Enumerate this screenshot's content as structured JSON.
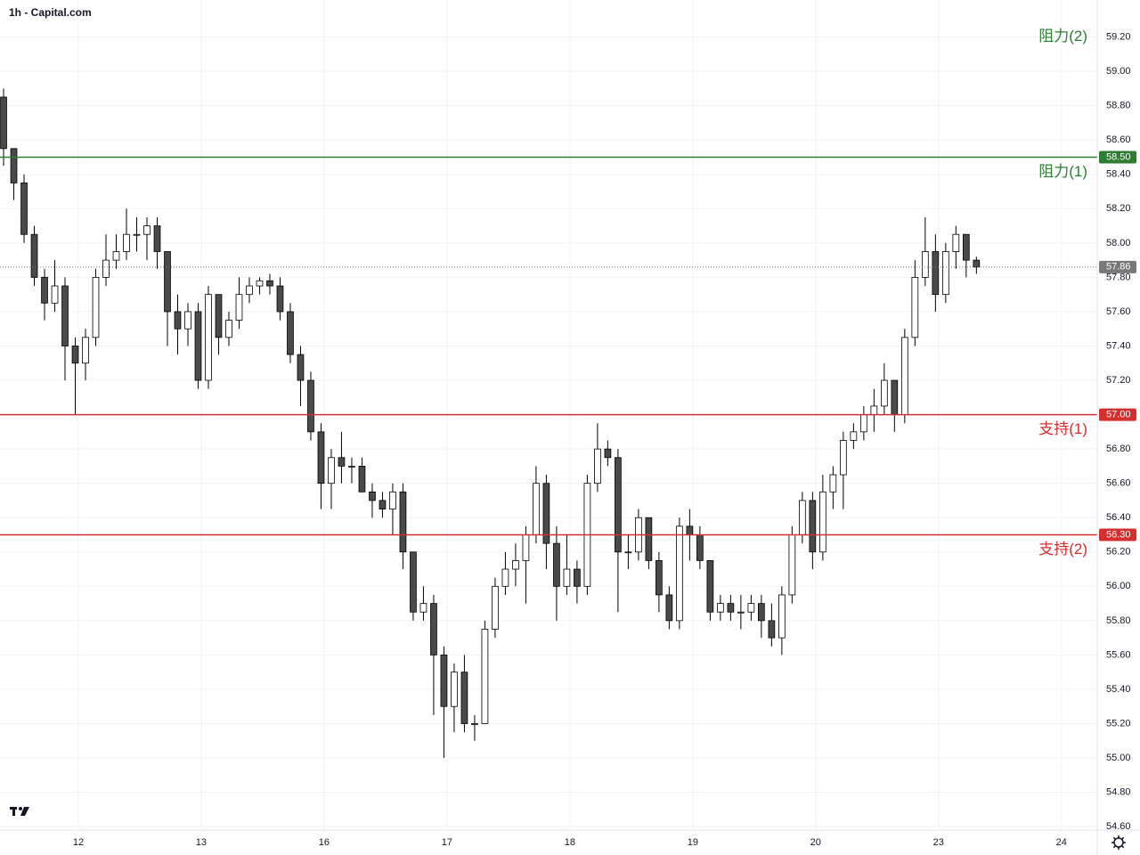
{
  "chart_data": {
    "type": "candlestick",
    "title": "1h - Capital.com",
    "open": [
      58.85,
      58.55,
      58.35,
      58.05,
      57.8,
      57.65,
      57.75,
      57.4,
      57.3,
      57.45,
      57.8,
      57.9,
      57.95,
      58.05,
      58.05,
      58.1,
      57.95,
      57.6,
      57.5,
      57.6,
      57.2,
      57.7,
      57.45,
      57.55,
      57.7,
      57.75,
      57.78,
      57.75,
      57.6,
      57.35,
      57.2,
      56.9,
      56.6,
      56.75,
      56.7,
      56.7,
      56.55,
      56.5,
      56.45,
      56.55,
      56.2,
      55.85,
      55.9,
      55.6,
      55.3,
      55.5,
      55.2,
      55.2,
      55.75,
      56.0,
      56.1,
      56.15,
      56.3,
      56.6,
      56.25,
      56.0,
      56.1,
      56.0,
      56.6,
      56.8,
      56.75,
      56.2,
      56.2,
      56.4,
      56.15,
      55.95,
      55.8,
      56.35,
      56.3,
      56.15,
      55.85,
      55.9,
      55.85,
      55.85,
      55.9,
      55.8,
      55.7,
      55.95,
      56.3,
      56.5,
      56.2,
      56.55,
      56.65,
      56.85,
      56.9,
      57.0,
      57.05,
      57.2,
      57.0,
      57.45,
      57.8,
      57.95,
      57.7,
      57.95,
      58.05,
      57.9
    ],
    "high": [
      58.9,
      58.55,
      58.4,
      58.1,
      57.85,
      57.9,
      57.8,
      57.45,
      57.5,
      57.85,
      58.05,
      58.05,
      58.2,
      58.15,
      58.15,
      58.15,
      57.95,
      57.7,
      57.65,
      57.65,
      57.75,
      57.7,
      57.6,
      57.8,
      57.8,
      57.8,
      57.82,
      57.8,
      57.65,
      57.4,
      57.25,
      56.95,
      56.8,
      56.9,
      56.75,
      56.75,
      56.6,
      56.55,
      56.6,
      56.6,
      56.2,
      56.0,
      55.95,
      55.65,
      55.55,
      55.6,
      55.25,
      55.8,
      56.05,
      56.2,
      56.25,
      56.35,
      56.7,
      56.65,
      56.35,
      56.3,
      56.15,
      56.65,
      56.95,
      56.85,
      56.8,
      56.3,
      56.45,
      56.4,
      56.2,
      56.0,
      56.4,
      56.45,
      56.35,
      56.15,
      55.95,
      55.95,
      55.95,
      55.95,
      55.95,
      55.9,
      56.0,
      56.35,
      56.55,
      56.55,
      56.65,
      56.7,
      56.9,
      56.95,
      57.05,
      57.15,
      57.3,
      57.2,
      57.5,
      57.9,
      58.15,
      58.05,
      58.0,
      58.1,
      58.05,
      57.92
    ],
    "low": [
      58.45,
      58.25,
      58.0,
      57.75,
      57.55,
      57.6,
      57.2,
      57.0,
      57.2,
      57.4,
      57.75,
      57.85,
      57.9,
      57.95,
      57.9,
      57.85,
      57.4,
      57.35,
      57.4,
      57.15,
      57.15,
      57.35,
      57.4,
      57.5,
      57.65,
      57.7,
      57.7,
      57.55,
      57.3,
      57.05,
      56.85,
      56.45,
      56.45,
      56.6,
      56.6,
      56.55,
      56.4,
      56.4,
      56.3,
      56.1,
      55.8,
      55.8,
      55.25,
      55.0,
      55.15,
      55.15,
      55.1,
      55.2,
      55.7,
      55.95,
      56.0,
      55.9,
      56.25,
      56.1,
      55.8,
      55.95,
      55.9,
      55.95,
      56.55,
      56.7,
      55.85,
      56.1,
      56.15,
      56.1,
      55.85,
      55.75,
      55.75,
      56.15,
      56.1,
      55.8,
      55.8,
      55.8,
      55.75,
      55.8,
      55.7,
      55.65,
      55.6,
      55.9,
      56.25,
      56.1,
      56.15,
      56.45,
      56.45,
      56.8,
      56.85,
      56.9,
      57.0,
      56.9,
      56.95,
      57.4,
      57.75,
      57.6,
      57.65,
      57.85,
      57.8,
      57.82
    ],
    "close": [
      58.55,
      58.35,
      58.05,
      57.8,
      57.65,
      57.75,
      57.4,
      57.3,
      57.45,
      57.8,
      57.9,
      57.95,
      58.05,
      58.05,
      58.1,
      57.95,
      57.6,
      57.5,
      57.6,
      57.2,
      57.7,
      57.45,
      57.55,
      57.7,
      57.75,
      57.78,
      57.75,
      57.6,
      57.35,
      57.2,
      56.9,
      56.6,
      56.75,
      56.7,
      56.7,
      56.55,
      56.5,
      56.45,
      56.55,
      56.2,
      55.85,
      55.9,
      55.6,
      55.3,
      55.5,
      55.2,
      55.2,
      55.75,
      56.0,
      56.1,
      56.15,
      56.3,
      56.6,
      56.25,
      56.0,
      56.1,
      56.0,
      56.6,
      56.8,
      56.75,
      56.2,
      56.2,
      56.4,
      56.15,
      55.95,
      55.8,
      56.35,
      56.3,
      56.15,
      55.85,
      55.9,
      55.85,
      55.85,
      55.9,
      55.8,
      55.7,
      55.95,
      56.3,
      56.5,
      56.2,
      56.55,
      56.65,
      56.85,
      56.9,
      57.0,
      57.05,
      57.2,
      57.0,
      57.45,
      57.8,
      57.95,
      57.7,
      57.95,
      58.05,
      57.9,
      57.86
    ],
    "up_color": "#ffffff",
    "down_color": "#4a4a4a",
    "wick_color": "#000000",
    "xlim": [
      -0.35,
      106.8
    ],
    "xticks": [
      {
        "value": 7.3,
        "label": "12"
      },
      {
        "value": 19.3,
        "label": "13"
      },
      {
        "value": 31.3,
        "label": "16"
      },
      {
        "value": 43.3,
        "label": "17"
      },
      {
        "value": 55.3,
        "label": "18"
      },
      {
        "value": 67.3,
        "label": "19"
      },
      {
        "value": 79.3,
        "label": "20"
      },
      {
        "value": 91.3,
        "label": "23"
      },
      {
        "value": 103.3,
        "label": "24"
      }
    ],
    "ylim": [
      54.58,
      59.26
    ],
    "yticks": [
      {
        "value": 54.6,
        "label": "54.60"
      },
      {
        "value": 54.8,
        "label": "54.80"
      },
      {
        "value": 55.0,
        "label": "55.00"
      },
      {
        "value": 55.2,
        "label": "55.20"
      },
      {
        "value": 55.4,
        "label": "55.40"
      },
      {
        "value": 55.6,
        "label": "55.60"
      },
      {
        "value": 55.8,
        "label": "55.80"
      },
      {
        "value": 56.0,
        "label": "56.00"
      },
      {
        "value": 56.2,
        "label": "56.20"
      },
      {
        "value": 56.4,
        "label": "56.40"
      },
      {
        "value": 56.6,
        "label": "56.60"
      },
      {
        "value": 56.8,
        "label": "56.80"
      },
      {
        "value": 57.0,
        "label": "57.00"
      },
      {
        "value": 57.2,
        "label": "57.20"
      },
      {
        "value": 57.4,
        "label": "57.40"
      },
      {
        "value": 57.6,
        "label": "57.60"
      },
      {
        "value": 57.8,
        "label": "57.80"
      },
      {
        "value": 58.0,
        "label": "58.00"
      },
      {
        "value": 58.2,
        "label": "58.20"
      },
      {
        "value": 58.4,
        "label": "58.40"
      },
      {
        "value": 58.6,
        "label": "58.60"
      },
      {
        "value": 58.8,
        "label": "58.80"
      },
      {
        "value": 59.0,
        "label": "59.00"
      },
      {
        "value": 59.2,
        "label": "59.20"
      }
    ],
    "grid": true,
    "levels": [
      {
        "name": "阻力(2)",
        "value": 59.2,
        "color": "#2e7d32",
        "line": false
      },
      {
        "name": "阻力(1)",
        "value": {
          "value": 58.5,
          "label": "58.50"
        },
        "color": "#2e7d32",
        "line": true
      },
      {
        "name": "支持(1)",
        "value": {
          "value": 57.0,
          "label": "57.00"
        },
        "color": "#d32f2f",
        "line": true
      },
      {
        "name": "支持(2)",
        "value": {
          "value": 56.3,
          "label": "56.30"
        },
        "color": "#d32f2f",
        "line": true
      }
    ],
    "last_price": {
      "value": 57.86,
      "color": "#787878"
    }
  }
}
